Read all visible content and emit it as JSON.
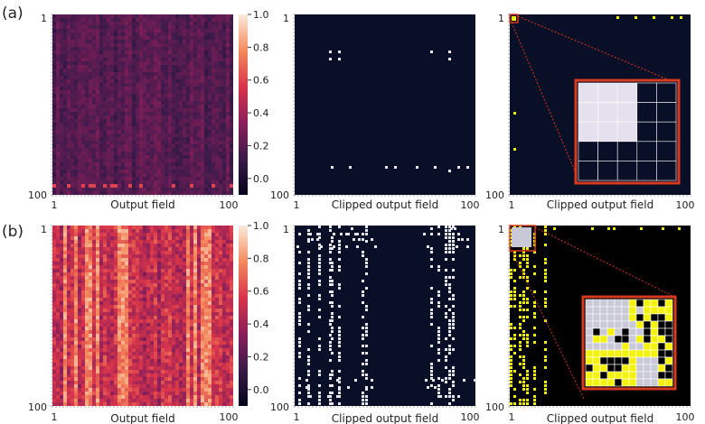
{
  "rows": [
    {
      "label": "(a)",
      "colorbar": {
        "ticks": [
          {
            "value": 1.0,
            "text": "1.0"
          },
          {
            "value": 0.8,
            "text": "0.8"
          },
          {
            "value": 0.6,
            "text": "0.6"
          },
          {
            "value": 0.4,
            "text": "0.4"
          },
          {
            "value": 0.2,
            "text": "0.2"
          },
          {
            "value": 0.0,
            "text": "0.0"
          }
        ]
      },
      "panels": [
        {
          "xlabel": "Output field",
          "x_start": "1",
          "x_end": "100",
          "y_start": "1",
          "y_end": "100"
        },
        {
          "xlabel": "Clipped output field",
          "x_start": "1",
          "x_end": "100",
          "y_start": "1",
          "y_end": "100"
        },
        {
          "xlabel": "Clipped output field",
          "x_start": "1",
          "x_end": "100",
          "y_start": "1",
          "y_end": "100"
        }
      ]
    },
    {
      "label": "(b)",
      "colorbar": {
        "ticks": [
          {
            "value": 1.0,
            "text": "1.0"
          },
          {
            "value": 0.8,
            "text": "0.8"
          },
          {
            "value": 0.6,
            "text": "0.6"
          },
          {
            "value": 0.4,
            "text": "0.4"
          },
          {
            "value": 0.2,
            "text": "0.2"
          },
          {
            "value": 0.0,
            "text": "0.0"
          }
        ]
      },
      "panels": [
        {
          "xlabel": "Output field",
          "x_start": "1",
          "x_end": "100",
          "y_start": "1",
          "y_end": "100"
        },
        {
          "xlabel": "Clipped output field",
          "x_start": "1",
          "x_end": "100",
          "y_start": "1",
          "y_end": "100"
        },
        {
          "xlabel": "Clipped output field",
          "x_start": "1",
          "x_end": "100",
          "y_start": "1",
          "y_end": "100"
        }
      ]
    }
  ],
  "chart_data": [
    {
      "type": "heatmap",
      "row": "(a)",
      "xlabel": "Output field",
      "x_range": [
        1,
        100
      ],
      "y_range": [
        1,
        100
      ],
      "zlim": [
        -0.1,
        1.0
      ],
      "colormap": "rocket",
      "mean_level": 0.13
    },
    {
      "type": "heatmap",
      "row": "(a)",
      "xlabel": "Clipped output field",
      "x_range": [
        1,
        100
      ],
      "y_range": [
        1,
        100
      ],
      "highlighted_points": [
        [
          20,
          21
        ],
        [
          25,
          21
        ],
        [
          20,
          25
        ],
        [
          25,
          25
        ],
        [
          76,
          21
        ],
        [
          86,
          21
        ],
        [
          86,
          25
        ],
        [
          21,
          85
        ],
        [
          31,
          85
        ],
        [
          51,
          85
        ],
        [
          56,
          85
        ],
        [
          68,
          85
        ],
        [
          78,
          85
        ],
        [
          91,
          85
        ],
        [
          96,
          85
        ],
        [
          86,
          87
        ]
      ]
    },
    {
      "type": "heatmap",
      "row": "(a)",
      "xlabel": "Clipped output field",
      "x_range": [
        1,
        100
      ],
      "y_range": [
        1,
        100
      ],
      "inset": true,
      "highlighted_points": [
        [
          2,
          2
        ],
        [
          3,
          2
        ],
        [
          2,
          3
        ],
        [
          3,
          3
        ],
        [
          60,
          2
        ],
        [
          70,
          2
        ],
        [
          80,
          2
        ],
        [
          90,
          2
        ],
        [
          95,
          2
        ],
        [
          3,
          55
        ],
        [
          3,
          75
        ]
      ],
      "inset_grid": {
        "size": 5,
        "lit": [
          [
            0,
            0
          ],
          [
            1,
            0
          ],
          [
            2,
            0
          ],
          [
            0,
            1
          ],
          [
            1,
            1
          ],
          [
            2,
            1
          ],
          [
            0,
            2
          ],
          [
            1,
            2
          ],
          [
            2,
            2
          ]
        ]
      }
    },
    {
      "type": "heatmap",
      "row": "(b)",
      "xlabel": "Output field",
      "x_range": [
        1,
        100
      ],
      "y_range": [
        1,
        100
      ],
      "zlim": [
        -0.1,
        1.0
      ],
      "colormap": "rocket",
      "mean_level": 0.42,
      "bright_columns": [
        8,
        14,
        20,
        22,
        25,
        38,
        40,
        42,
        76,
        80,
        84,
        86,
        88
      ]
    },
    {
      "type": "heatmap",
      "row": "(b)",
      "xlabel": "Clipped output field",
      "x_range": [
        1,
        100
      ],
      "y_range": [
        1,
        100
      ],
      "highlighted_columns": [
        3,
        8,
        14,
        20,
        21,
        25,
        38,
        40,
        76,
        80,
        84,
        86,
        88
      ]
    },
    {
      "type": "heatmap",
      "row": "(b)",
      "xlabel": "Clipped output field",
      "x_range": [
        1,
        100
      ],
      "y_range": [
        1,
        100
      ],
      "inset": true,
      "highlighted_columns": [
        1,
        3,
        6,
        8,
        10,
        14,
        20
      ],
      "inset_grid": {
        "size": 12
      }
    }
  ]
}
